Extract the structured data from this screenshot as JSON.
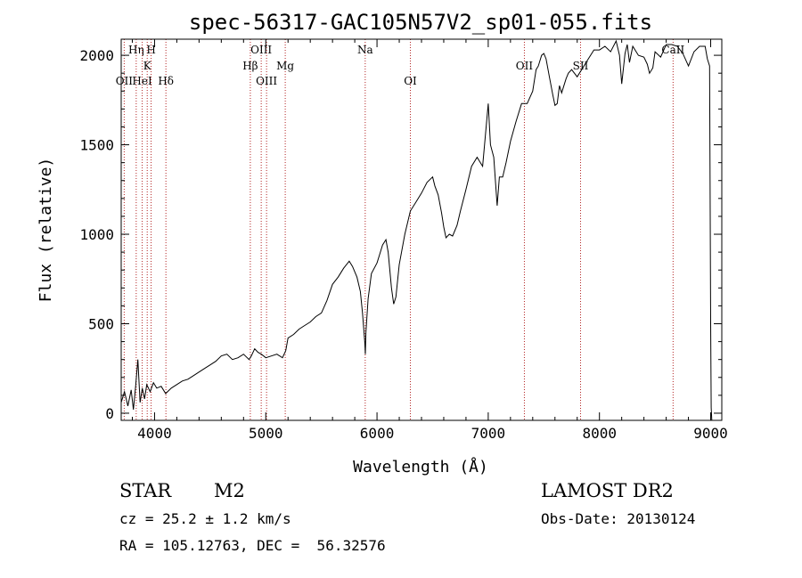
{
  "chart_data": {
    "type": "line",
    "title": "spec-56317-GAC105N57V2_sp01-055.fits",
    "xlabel": "Wavelength (Å)",
    "ylabel": "Flux (relative)",
    "xlim": [
      3700,
      9100
    ],
    "ylim": [
      -40,
      2090
    ],
    "x_ticks": [
      4000,
      5000,
      6000,
      7000,
      8000,
      9000
    ],
    "y_ticks": [
      0,
      500,
      1000,
      1500,
      2000
    ],
    "grid": false,
    "line_color": "#000000",
    "marker_color": "#b22222",
    "series": [
      {
        "x": [
          3700,
          3730,
          3760,
          3790,
          3810,
          3830,
          3850,
          3870,
          3890,
          3910,
          3930,
          3960,
          3990,
          4020,
          4060,
          4100,
          4150,
          4200,
          4250,
          4300,
          4350,
          4400,
          4450,
          4500,
          4550,
          4600,
          4650,
          4700,
          4750,
          4800,
          4850,
          4870,
          4900,
          4930,
          4960,
          5000,
          5050,
          5100,
          5150,
          5180,
          5200,
          5250,
          5300,
          5350,
          5400,
          5450,
          5500,
          5550,
          5600,
          5650,
          5700,
          5750,
          5780,
          5820,
          5850,
          5870,
          5890,
          5895,
          5900,
          5920,
          5950,
          6000,
          6020,
          6050,
          6080,
          6100,
          6130,
          6150,
          6170,
          6200,
          6250,
          6300,
          6350,
          6400,
          6450,
          6500,
          6520,
          6550,
          6580,
          6600,
          6620,
          6650,
          6680,
          6700,
          6720,
          6750,
          6800,
          6850,
          6900,
          6950,
          7000,
          7020,
          7050,
          7080,
          7100,
          7130,
          7160,
          7200,
          7250,
          7300,
          7350,
          7400,
          7430,
          7450,
          7480,
          7500,
          7520,
          7550,
          7580,
          7600,
          7620,
          7640,
          7660,
          7680,
          7700,
          7720,
          7750,
          7800,
          7850,
          7900,
          7950,
          8000,
          8050,
          8100,
          8150,
          8180,
          8200,
          8230,
          8250,
          8270,
          8300,
          8350,
          8400,
          8430,
          8450,
          8480,
          8500,
          8550,
          8600,
          8650,
          8700,
          8750,
          8800,
          8850,
          8900,
          8950,
          8970,
          8990,
          9000,
          9005,
          9010
        ],
        "y": [
          60,
          120,
          40,
          130,
          20,
          150,
          300,
          60,
          140,
          80,
          160,
          120,
          170,
          140,
          150,
          110,
          140,
          160,
          180,
          190,
          210,
          230,
          250,
          270,
          290,
          320,
          330,
          300,
          310,
          330,
          300,
          320,
          360,
          340,
          330,
          310,
          320,
          330,
          310,
          350,
          420,
          440,
          470,
          490,
          510,
          540,
          560,
          630,
          720,
          760,
          810,
          850,
          820,
          760,
          680,
          560,
          400,
          330,
          450,
          640,
          780,
          840,
          880,
          940,
          970,
          900,
          700,
          610,
          650,
          830,
          1000,
          1130,
          1180,
          1230,
          1290,
          1320,
          1270,
          1220,
          1120,
          1040,
          980,
          1000,
          990,
          1020,
          1050,
          1130,
          1250,
          1380,
          1430,
          1380,
          1730,
          1500,
          1430,
          1160,
          1320,
          1320,
          1400,
          1520,
          1630,
          1730,
          1730,
          1800,
          1920,
          1940,
          2000,
          2010,
          1980,
          1880,
          1780,
          1720,
          1730,
          1830,
          1790,
          1830,
          1870,
          1900,
          1920,
          1880,
          1930,
          1980,
          2030,
          2030,
          2050,
          2020,
          2080,
          2000,
          1840,
          2010,
          2060,
          1960,
          2050,
          2000,
          1990,
          1950,
          1900,
          1930,
          2020,
          1990,
          2060,
          2060,
          2050,
          2010,
          1940,
          2020,
          2050,
          2050,
          1980,
          1940,
          500,
          30,
          -40
        ]
      }
    ],
    "line_markers": [
      {
        "label": "OII",
        "x": 3727,
        "row": 3
      },
      {
        "label": "Hη",
        "x": 3835,
        "row": 1
      },
      {
        "label": "HeI",
        "x": 3889,
        "row": 3
      },
      {
        "label": "K",
        "x": 3934,
        "row": 2
      },
      {
        "label": "H",
        "x": 3969,
        "row": 1
      },
      {
        "label": "Hδ",
        "x": 4102,
        "row": 3
      },
      {
        "label": "Hβ",
        "x": 4861,
        "row": 2
      },
      {
        "label": "OIII",
        "x": 4959,
        "row": 1
      },
      {
        "label": "OIII",
        "x": 5007,
        "row": 3
      },
      {
        "label": "Mg",
        "x": 5175,
        "row": 2
      },
      {
        "label": "Na",
        "x": 5894,
        "row": 1
      },
      {
        "label": "OI",
        "x": 6300,
        "row": 3
      },
      {
        "label": "OII",
        "x": 7325,
        "row": 2
      },
      {
        "label": "SII",
        "x": 7830,
        "row": 2
      },
      {
        "label": "CaII",
        "x": 8662,
        "row": 1
      }
    ]
  },
  "info": {
    "class": "STAR",
    "subclass": "M2",
    "survey": "LAMOST DR2",
    "cz": "cz = 25.2 ± 1.2 km/s",
    "obs_date": "Obs-Date: 20130124",
    "coords": "RA = 105.12763, DEC =  56.32576"
  }
}
